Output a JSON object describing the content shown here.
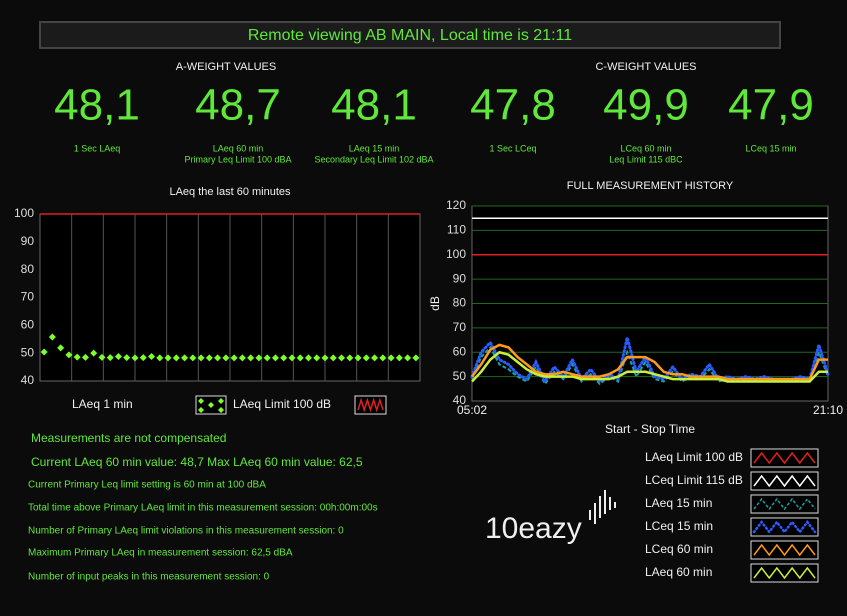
{
  "header": {
    "title": "Remote viewing AB MAIN, Local time is 21:11"
  },
  "a_weight": {
    "title": "A-WEIGHT VALUES",
    "readings": [
      {
        "value": "48,1",
        "labels": [
          "1 Sec LAeq"
        ]
      },
      {
        "value": "48,7",
        "labels": [
          "LAeq 60 min",
          "Primary Leq Limit 100 dBA"
        ]
      },
      {
        "value": "48,1",
        "labels": [
          "LAeq 15 min",
          "Secondary Leq Limit 102 dBA"
        ]
      }
    ]
  },
  "c_weight": {
    "title": "C-WEIGHT VALUES",
    "readings": [
      {
        "value": "47,8",
        "labels": [
          "1 Sec LCeq"
        ]
      },
      {
        "value": "49,9",
        "labels": [
          "LCeq 60 min",
          "Leq Limit 115 dBC"
        ]
      },
      {
        "value": "47,9",
        "labels": [
          "LCeq 15 min"
        ]
      }
    ]
  },
  "chart_data": [
    {
      "type": "line",
      "markers_only": true,
      "title": "LAeq the last 60 minutes",
      "ylim": [
        40,
        100
      ],
      "yticks": [
        40,
        50,
        60,
        70,
        80,
        90,
        100
      ],
      "series": [
        {
          "name": "LAeq 1 min",
          "color": "#7dff2a",
          "values": [
            50.4,
            55.8,
            51.9,
            49.4,
            48.6,
            48.5,
            50.0,
            48.5,
            48.4,
            48.8,
            48.4,
            48.3,
            48.4,
            48.8,
            48.3,
            48.3,
            48.3,
            48.3,
            48.3,
            48.3,
            48.3,
            48.3,
            48.3,
            48.3,
            48.3,
            48.3,
            48.3,
            48.3,
            48.3,
            48.3,
            48.3,
            48.3,
            48.3,
            48.3,
            48.3,
            48.3,
            48.3,
            48.3,
            48.3,
            48.3,
            48.3,
            48.3,
            48.3,
            48.3,
            48.3,
            48.3
          ]
        }
      ],
      "reference_lines": [
        {
          "name": "LAeq Limit 100 dB",
          "value": 100,
          "color": "#e02020"
        }
      ]
    },
    {
      "type": "line",
      "title": "FULL MEASUREMENT HISTORY",
      "y_label": "dB",
      "x_label": "Start - Stop Time",
      "ylim": [
        40,
        120
      ],
      "yticks": [
        40,
        50,
        60,
        70,
        80,
        90,
        100,
        110,
        120
      ],
      "grid": true,
      "grid_color": "#1f6a1f",
      "categories": [
        "05:02",
        null,
        null,
        null,
        null,
        null,
        null,
        null,
        null,
        null,
        null,
        null,
        null,
        null,
        null,
        null,
        null,
        null,
        null,
        null,
        null,
        null,
        null,
        null,
        null,
        null,
        null,
        null,
        null,
        null,
        null,
        null,
        null,
        null,
        null,
        null,
        null,
        null,
        null,
        "21:10"
      ],
      "reference_lines": [
        {
          "name": "LAeq Limit 100 dB",
          "value": 100,
          "color": "#e02020"
        },
        {
          "name": "LCeq Limit 115 dB",
          "value": 115,
          "color": "#ffffff"
        }
      ],
      "series": [
        {
          "name": "LAeq 15 min",
          "color": "#1aa3a3",
          "style": "dashed",
          "values": [
            49,
            58,
            62,
            55,
            53,
            50,
            48,
            54,
            47,
            52,
            49,
            55,
            48,
            51,
            47,
            50,
            48,
            60,
            50,
            56,
            49,
            48,
            52,
            48,
            50,
            49,
            53,
            48,
            49,
            48,
            49,
            48,
            49,
            48,
            48,
            48,
            49,
            48,
            60,
            50
          ]
        },
        {
          "name": "LCeq 15 min",
          "color": "#2a5cff",
          "style": "dotted",
          "values": [
            50,
            60,
            64,
            57,
            55,
            51,
            49,
            56,
            48,
            54,
            50,
            57,
            49,
            53,
            48,
            51,
            49,
            66,
            52,
            58,
            50,
            49,
            54,
            49,
            51,
            50,
            55,
            49,
            50,
            49,
            50,
            49,
            50,
            49,
            49,
            49,
            50,
            49,
            63,
            51
          ]
        },
        {
          "name": "LCeq 60 min",
          "color": "#ff9a1a",
          "style": "solid",
          "values": [
            50,
            55,
            61,
            63,
            62,
            58,
            55,
            52,
            51,
            51,
            52,
            51,
            50,
            50,
            50,
            51,
            53,
            58,
            58,
            58,
            56,
            52,
            51,
            51,
            50,
            50,
            50,
            50,
            49,
            49,
            49,
            49,
            49,
            49,
            49,
            49,
            49,
            49,
            57,
            57
          ]
        },
        {
          "name": "LAeq 60 min",
          "color": "#c8f03a",
          "style": "solid",
          "values": [
            48,
            52,
            57,
            60,
            59,
            56,
            53,
            51,
            50,
            50,
            50,
            50,
            49,
            49,
            49,
            49,
            50,
            52,
            52,
            52,
            51,
            50,
            49,
            49,
            49,
            49,
            49,
            49,
            48,
            48,
            48,
            48,
            48,
            48,
            48,
            48,
            48,
            48,
            52,
            52
          ]
        }
      ]
    }
  ],
  "status": {
    "lines": [
      "Measurements are not compensated",
      "Current LAeq 60 min value: 48,7   Max LAeq 60 min value: 62,5",
      "Current Primary Leq limit setting is 60 min at 100 dBA",
      "Total time above Primary LAeq limit in this measurement session: 00h:00m:00s",
      "Number of Primary LAeq limit violations in this measurement session: 0",
      "Maximum Primary LAeq in measurement session: 62,5 dBA",
      "Number of input peaks in this measurement session: 0"
    ]
  },
  "logo": "10eazy"
}
